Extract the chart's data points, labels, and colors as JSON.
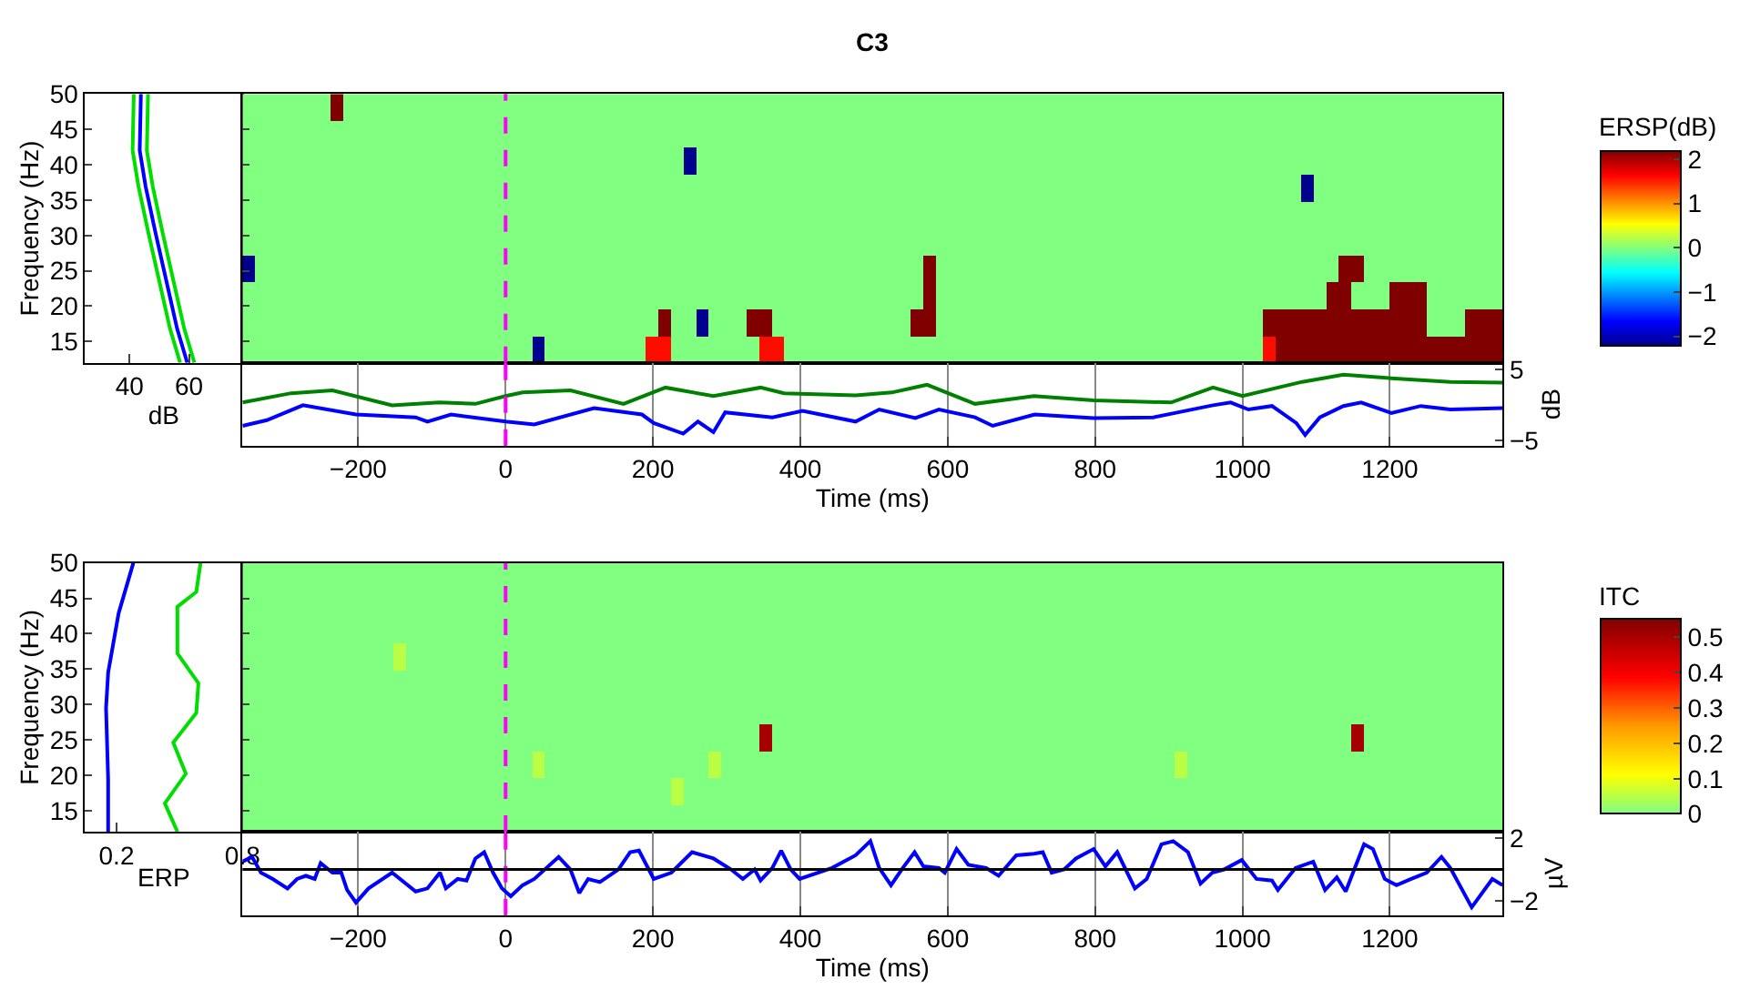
{
  "chart_data": [
    {
      "type": "line",
      "orientation": "horizontal",
      "ylabel": "Frequency (Hz)",
      "xlabel": "dB",
      "xlim": [
        25,
        78
      ],
      "xticks": [
        40,
        60
      ],
      "ylim": [
        12,
        50
      ],
      "yticks": [
        15,
        20,
        25,
        30,
        35,
        40,
        45,
        50
      ],
      "series": [
        {
          "color": "#00dd00",
          "x": [
            50,
            42,
            36.9,
            30.2,
            23.5,
            16.8,
            12
          ],
          "values": [
            41.4,
            41,
            43,
            46.4,
            50,
            53.6,
            57
          ]
        },
        {
          "color": "#00dd00",
          "x": [
            50,
            42,
            36.9,
            30.2,
            23.5,
            16.8,
            12
          ],
          "values": [
            46.2,
            45.8,
            47.8,
            51.2,
            54.8,
            58.4,
            61.8
          ]
        },
        {
          "color": "#0000ff",
          "x": [
            50,
            42,
            36.9,
            30.2,
            23.5,
            16.8,
            12
          ],
          "values": [
            43.8,
            43.4,
            45.4,
            48.8,
            52.4,
            56,
            59.4
          ]
        }
      ]
    },
    {
      "type": "heatmap",
      "title": "C3",
      "clabel": "ERSP(dB)",
      "clim": [
        -2.2,
        2.2
      ],
      "cticks": [
        -2,
        -1,
        0,
        1,
        2
      ],
      "xlim": [
        -357,
        1353
      ],
      "ylim": [
        12,
        50
      ],
      "yticks": [
        15,
        20,
        25,
        30,
        35,
        40,
        45,
        50
      ],
      "tick_labels": false,
      "ref_lines": [
        {
          "axis": "x",
          "value": 0,
          "color": "#ff00ff",
          "line_style": "dashed"
        }
      ],
      "cells": [
        [
          0,
          0,
          0,
          0,
          0,
          0,
          0,
          2.2,
          0,
          0,
          0,
          0,
          0,
          0,
          0,
          0,
          0,
          0,
          0,
          0,
          0,
          0,
          0,
          0,
          0,
          0,
          0,
          0,
          0,
          0,
          0,
          0,
          0,
          0,
          0,
          0,
          0,
          0,
          0,
          0,
          0,
          0,
          0,
          0,
          0,
          0,
          0,
          0,
          0,
          0,
          0,
          0,
          0,
          0,
          0,
          0,
          0,
          0,
          0,
          0,
          0,
          0,
          0,
          0,
          0,
          0,
          0,
          0,
          0,
          0,
          0,
          0,
          0,
          0,
          0,
          0,
          0,
          0,
          0,
          0,
          0,
          0,
          0,
          0,
          0,
          0,
          0,
          0,
          0,
          0,
          0,
          0,
          0,
          0,
          0,
          0,
          0,
          0,
          0,
          0
        ],
        [
          0,
          0,
          0,
          0,
          0,
          0,
          0,
          0,
          0,
          0,
          0,
          0,
          0,
          0,
          0,
          0,
          0,
          0,
          0,
          0,
          0,
          0,
          0,
          0,
          0,
          0,
          0,
          0,
          0,
          0,
          0,
          0,
          0,
          0,
          0,
          0,
          0,
          0,
          0,
          0,
          0,
          0,
          0,
          0,
          0,
          0,
          0,
          0,
          0,
          0,
          0,
          0,
          0,
          0,
          0,
          0,
          0,
          0,
          0,
          0,
          0,
          0,
          0,
          0,
          0,
          0,
          0,
          0,
          0,
          0,
          0,
          0,
          0,
          0,
          0,
          0,
          0,
          0,
          0,
          0,
          0,
          0,
          0,
          0,
          0,
          0,
          0,
          0,
          0,
          0,
          0,
          0,
          0,
          0,
          0,
          0,
          0,
          0,
          0,
          0
        ],
        [
          0,
          0,
          0,
          0,
          0,
          0,
          0,
          0,
          0,
          0,
          0,
          0,
          0,
          0,
          0,
          0,
          0,
          0,
          0,
          0,
          0,
          0,
          0,
          0,
          0,
          0,
          0,
          0,
          0,
          0,
          0,
          0,
          0,
          0,
          0,
          -2.2,
          0,
          0,
          0,
          0,
          0,
          0,
          0,
          0,
          0,
          0,
          0,
          0,
          0,
          0,
          0,
          0,
          0,
          0,
          0,
          0,
          0,
          0,
          0,
          0,
          0,
          0,
          0,
          0,
          0,
          0,
          0,
          0,
          0,
          0,
          0,
          0,
          0,
          0,
          0,
          0,
          0,
          0,
          0,
          0,
          0,
          0,
          0,
          0,
          0,
          0,
          0,
          0,
          0,
          0,
          0,
          0,
          0,
          0,
          0,
          0,
          0,
          0,
          0,
          0
        ],
        [
          0,
          0,
          0,
          0,
          0,
          0,
          0,
          0,
          0,
          0,
          0,
          0,
          0,
          0,
          0,
          0,
          0,
          0,
          0,
          0,
          0,
          0,
          0,
          0,
          0,
          0,
          0,
          0,
          0,
          0,
          0,
          0,
          0,
          0,
          0,
          0,
          0,
          0,
          0,
          0,
          0,
          0,
          0,
          0,
          0,
          0,
          0,
          0,
          0,
          0,
          0,
          0,
          0,
          0,
          0,
          0,
          0,
          0,
          0,
          0,
          0,
          0,
          0,
          0,
          0,
          0,
          0,
          0,
          0,
          0,
          0,
          0,
          0,
          0,
          0,
          0,
          0,
          0,
          0,
          0,
          0,
          0,
          0,
          0,
          -2.2,
          0,
          0,
          0,
          0,
          0,
          0,
          0,
          0,
          0,
          0,
          0,
          0,
          0,
          0,
          0
        ],
        [
          0,
          0,
          0,
          0,
          0,
          0,
          0,
          0,
          0,
          0,
          0,
          0,
          0,
          0,
          0,
          0,
          0,
          0,
          0,
          0,
          0,
          0,
          0,
          0,
          0,
          0,
          0,
          0,
          0,
          0,
          0,
          0,
          0,
          0,
          0,
          0,
          0,
          0,
          0,
          0,
          0,
          0,
          0,
          0,
          0,
          0,
          0,
          0,
          0,
          0,
          0,
          0,
          0,
          0,
          0,
          0,
          0,
          0,
          0,
          0,
          0,
          0,
          0,
          0,
          0,
          0,
          0,
          0,
          0,
          0,
          0,
          0,
          0,
          0,
          0,
          0,
          0,
          0,
          0,
          0,
          0,
          0,
          0,
          0,
          0,
          0,
          0,
          0,
          0,
          0,
          0,
          0,
          0,
          0,
          0,
          0,
          0,
          0,
          0,
          0
        ],
        [
          0,
          0,
          0,
          0,
          0,
          0,
          0,
          0,
          0,
          0,
          0,
          0,
          0,
          0,
          0,
          0,
          0,
          0,
          0,
          0,
          0,
          0,
          0,
          0,
          0,
          0,
          0,
          0,
          0,
          0,
          0,
          0,
          0,
          0,
          0,
          0,
          0,
          0,
          0,
          0,
          0,
          0,
          0,
          0,
          0,
          0,
          0,
          0,
          0,
          0,
          0,
          0,
          0,
          0,
          0,
          0,
          0,
          0,
          0,
          0,
          0,
          0,
          0,
          0,
          0,
          0,
          0,
          0,
          0,
          0,
          0,
          0,
          0,
          0,
          0,
          0,
          0,
          0,
          0,
          0,
          0,
          0,
          0,
          0,
          0,
          0,
          0,
          0,
          0,
          0,
          0,
          0,
          0,
          0,
          0,
          0,
          0,
          0,
          0,
          0
        ],
        [
          -2.2,
          0,
          0,
          0,
          0,
          0,
          0,
          0,
          0,
          0,
          0,
          0,
          0,
          0,
          0,
          0,
          0,
          0,
          0,
          0,
          0,
          0,
          0,
          0,
          0,
          0,
          0,
          0,
          0,
          0,
          0,
          0,
          0,
          0,
          0,
          0,
          0,
          0,
          0,
          0,
          0,
          0,
          0,
          0,
          0,
          0,
          0,
          0,
          0,
          0,
          0,
          0,
          0,
          0,
          2.2,
          0,
          0,
          0,
          0,
          0,
          0,
          0,
          0,
          0,
          0,
          0,
          0,
          0,
          0,
          0,
          0,
          0,
          0,
          0,
          0,
          0,
          0,
          0,
          0,
          0,
          0,
          0,
          0,
          0,
          0,
          0,
          0,
          2.2,
          2.2,
          0,
          0,
          0,
          0,
          0,
          0,
          0,
          0,
          0,
          0,
          0
        ],
        [
          0,
          0,
          0,
          0,
          0,
          0,
          0,
          0,
          0,
          0,
          0,
          0,
          0,
          0,
          0,
          0,
          0,
          0,
          0,
          0,
          0,
          0,
          0,
          0,
          0,
          0,
          0,
          0,
          0,
          0,
          0,
          0,
          0,
          0,
          0,
          0,
          0,
          0,
          0,
          0,
          0,
          0,
          0,
          0,
          0,
          0,
          0,
          0,
          0,
          0,
          0,
          0,
          0,
          0,
          2.2,
          0,
          0,
          0,
          0,
          0,
          0,
          0,
          0,
          0,
          0,
          0,
          0,
          0,
          0,
          0,
          0,
          0,
          0,
          0,
          0,
          0,
          0,
          0,
          0,
          0,
          0,
          0,
          0,
          0,
          0,
          0,
          2.2,
          2.2,
          0,
          0,
          0,
          2.2,
          2.2,
          2.2,
          0,
          0,
          0,
          0,
          0,
          0
        ],
        [
          0,
          0,
          0,
          0,
          0,
          0,
          0,
          0,
          0,
          0,
          0,
          0,
          0,
          0,
          0,
          0,
          0,
          0,
          0,
          0,
          0,
          0,
          0,
          0,
          0,
          0,
          0,
          0,
          0,
          0,
          0,
          0,
          0,
          2.2,
          0,
          0,
          -2.2,
          0,
          0,
          0,
          2.2,
          2.2,
          0,
          0,
          0,
          0,
          0,
          0,
          0,
          0,
          0,
          0,
          0,
          2.2,
          2.2,
          0,
          0,
          0,
          0,
          0,
          0,
          0,
          0,
          0,
          0,
          0,
          0,
          0,
          0,
          0,
          0,
          0,
          0,
          0,
          0,
          0,
          0,
          0,
          0,
          0,
          0,
          2.2,
          2.2,
          2.2,
          2.2,
          2.2,
          2.2,
          2.2,
          2.2,
          2.2,
          2.2,
          2.2,
          2.2,
          2.2,
          0,
          0,
          0,
          2.2,
          2.2,
          2.2
        ],
        [
          0,
          0,
          0,
          0,
          0,
          0,
          0,
          0,
          0,
          0,
          0,
          0,
          0,
          0,
          0,
          0,
          0,
          0,
          0,
          0,
          0,
          0,
          0,
          -2.2,
          0,
          0,
          0,
          0,
          0,
          0,
          0,
          0,
          1.6,
          1.6,
          0,
          0,
          0,
          0,
          0,
          0,
          0,
          1.6,
          1.6,
          0,
          0,
          0,
          0,
          0,
          0,
          0,
          0,
          0,
          0,
          0,
          0,
          0,
          0,
          0,
          0,
          0,
          0,
          0,
          0,
          0,
          0,
          0,
          0,
          0,
          0,
          0,
          0,
          0,
          0,
          0,
          0,
          0,
          0,
          0,
          0,
          0,
          0,
          1.6,
          2.2,
          2.2,
          2.2,
          2.2,
          2.2,
          2.2,
          2.2,
          2.2,
          2.2,
          2.2,
          2.2,
          2.2,
          2.2,
          2.2,
          2.2,
          2.2,
          2.2,
          2.2
        ]
      ]
    },
    {
      "type": "line",
      "xlabel": "Time (ms)",
      "ylabel": "dB",
      "xlim": [
        -357,
        1353
      ],
      "xticks": [
        -200,
        0,
        200,
        400,
        600,
        800,
        1000,
        1200
      ],
      "ylim": [
        -5.7,
        6
      ],
      "yticks": [
        -5,
        5
      ],
      "grid": "x",
      "ref_lines": [
        {
          "axis": "x",
          "value": 0,
          "color": "#ff00ff",
          "line_style": "dashed"
        }
      ],
      "series": [
        {
          "color": "#008000",
          "x": [
            -357,
            -291,
            -235,
            -154,
            -90,
            -41,
            0,
            23,
            88,
            160,
            217,
            282,
            346,
            378,
            475,
            524,
            572,
            637,
            717,
            798,
            903,
            960,
            1000,
            1081,
            1137,
            1202,
            1282,
            1353
          ],
          "values": [
            0.4,
            1.7,
            2.1,
            0,
            0.4,
            0.2,
            1.3,
            1.8,
            2.1,
            0.2,
            2.5,
            1.3,
            2.5,
            1.7,
            1.4,
            1.8,
            2.9,
            0.2,
            1.3,
            0.7,
            0.4,
            2.5,
            1.3,
            3.3,
            4.3,
            3.8,
            3.3,
            3.2
          ]
        },
        {
          "color": "#0000ff",
          "x": [
            -357,
            -324,
            -275,
            -203,
            -122,
            -106,
            -74,
            0,
            39,
            120,
            185,
            201,
            241,
            261,
            282,
            298,
            362,
            403,
            475,
            507,
            556,
            588,
            637,
            661,
            718,
            798,
            879,
            960,
            984,
            1008,
            1040,
            1073,
            1085,
            1105,
            1137,
            1161,
            1202,
            1242,
            1282,
            1353
          ],
          "values": [
            -2.9,
            -2.1,
            0,
            -1.3,
            -1.7,
            -2.3,
            -1.3,
            -2.3,
            -2.7,
            -0.4,
            -1.3,
            -2.5,
            -4,
            -2.3,
            -3.8,
            -1,
            -1.7,
            -0.8,
            -2.3,
            -0.6,
            -1.8,
            -0.6,
            -1.7,
            -2.9,
            -1.3,
            -1.8,
            -1.7,
            0,
            0.4,
            -0.6,
            -0.1,
            -2.5,
            -4.2,
            -1.7,
            -0.1,
            0.4,
            -1.1,
            -0.1,
            -0.6,
            -0.4
          ]
        }
      ]
    },
    {
      "type": "line",
      "orientation": "horizontal",
      "ylabel": "Frequency (Hz)",
      "xlabel": "ERP",
      "xlim": [
        0.05,
        0.8
      ],
      "xticks": [
        0.2,
        0.8
      ],
      "ylim": [
        12,
        50
      ],
      "yticks": [
        15,
        20,
        25,
        30,
        35,
        40,
        45,
        50
      ],
      "series": [
        {
          "color": "#0000ff",
          "x": [
            50,
            42.9,
            34.5,
            29.5,
            19.4,
            12
          ],
          "values": [
            0.28,
            0.21,
            0.16,
            0.15,
            0.16,
            0.16
          ]
        },
        {
          "color": "#00dd00",
          "x": [
            50,
            45.9,
            43.8,
            37.2,
            33,
            28.8,
            24.6,
            20.2,
            16,
            12
          ],
          "values": [
            0.6,
            0.58,
            0.49,
            0.49,
            0.59,
            0.58,
            0.47,
            0.53,
            0.43,
            0.49
          ]
        }
      ]
    },
    {
      "type": "heatmap",
      "clabel": "ITC",
      "clim": [
        0,
        0.55
      ],
      "cticks": [
        0,
        0.1,
        0.2,
        0.3,
        0.4,
        0.5
      ],
      "xlim": [
        -357,
        1353
      ],
      "ylim": [
        12,
        50
      ],
      "yticks": [
        15,
        20,
        25,
        30,
        35,
        40,
        45,
        50
      ],
      "tick_labels": false,
      "ref_lines": [
        {
          "axis": "x",
          "value": 0,
          "color": "#ff00ff",
          "line_style": "dashed"
        }
      ],
      "cells": [
        [
          0,
          0,
          0,
          0,
          0,
          0,
          0,
          0,
          0,
          0,
          0,
          0,
          0,
          0,
          0,
          0,
          0,
          0,
          0,
          0,
          0,
          0,
          0,
          0,
          0,
          0,
          0,
          0,
          0,
          0,
          0,
          0,
          0,
          0,
          0,
          0,
          0,
          0,
          0,
          0,
          0,
          0,
          0,
          0,
          0,
          0,
          0,
          0,
          0,
          0,
          0,
          0,
          0,
          0,
          0,
          0,
          0,
          0,
          0,
          0,
          0,
          0,
          0,
          0,
          0,
          0,
          0,
          0,
          0,
          0,
          0,
          0,
          0,
          0,
          0,
          0,
          0,
          0,
          0,
          0,
          0,
          0,
          0,
          0,
          0,
          0,
          0,
          0,
          0,
          0,
          0,
          0,
          0,
          0,
          0,
          0,
          0,
          0,
          0,
          0
        ],
        [
          0,
          0,
          0,
          0,
          0,
          0,
          0,
          0,
          0,
          0,
          0,
          0,
          0,
          0,
          0,
          0,
          0,
          0,
          0,
          0,
          0,
          0,
          0,
          0,
          0,
          0,
          0,
          0,
          0,
          0,
          0,
          0,
          0,
          0,
          0,
          0,
          0,
          0,
          0,
          0,
          0,
          0,
          0,
          0,
          0,
          0,
          0,
          0,
          0,
          0,
          0,
          0,
          0,
          0,
          0,
          0,
          0,
          0,
          0,
          0,
          0,
          0,
          0,
          0,
          0,
          0,
          0,
          0,
          0,
          0,
          0,
          0,
          0,
          0,
          0,
          0,
          0,
          0,
          0,
          0,
          0,
          0,
          0,
          0,
          0,
          0,
          0,
          0,
          0,
          0,
          0,
          0,
          0,
          0,
          0,
          0,
          0,
          0,
          0,
          0
        ],
        [
          0,
          0,
          0,
          0,
          0,
          0,
          0,
          0,
          0,
          0,
          0,
          0,
          0,
          0,
          0,
          0,
          0,
          0,
          0,
          0,
          0,
          0,
          0,
          0,
          0,
          0,
          0,
          0,
          0,
          0,
          0,
          0,
          0,
          0,
          0,
          0,
          0,
          0,
          0,
          0,
          0,
          0,
          0,
          0,
          0,
          0,
          0,
          0,
          0,
          0,
          0,
          0,
          0,
          0,
          0,
          0,
          0,
          0,
          0,
          0,
          0,
          0,
          0,
          0,
          0,
          0,
          0,
          0,
          0,
          0,
          0,
          0,
          0,
          0,
          0,
          0,
          0,
          0,
          0,
          0,
          0,
          0,
          0,
          0,
          0,
          0,
          0,
          0,
          0,
          0,
          0,
          0,
          0,
          0,
          0,
          0,
          0,
          0,
          0,
          0
        ],
        [
          0,
          0,
          0,
          0,
          0,
          0,
          0,
          0,
          0,
          0,
          0,
          0,
          0.05,
          0,
          0,
          0,
          0,
          0,
          0,
          0,
          0,
          0,
          0,
          0,
          0,
          0,
          0,
          0,
          0,
          0,
          0,
          0,
          0,
          0,
          0,
          0,
          0,
          0,
          0,
          0,
          0,
          0,
          0,
          0,
          0,
          0,
          0,
          0,
          0,
          0,
          0,
          0,
          0,
          0,
          0,
          0,
          0,
          0,
          0,
          0,
          0,
          0,
          0,
          0,
          0,
          0,
          0,
          0,
          0,
          0,
          0,
          0,
          0,
          0,
          0,
          0,
          0,
          0,
          0,
          0,
          0,
          0,
          0,
          0,
          0,
          0,
          0,
          0,
          0,
          0,
          0,
          0,
          0,
          0,
          0,
          0,
          0,
          0,
          0,
          0
        ],
        [
          0,
          0,
          0,
          0,
          0,
          0,
          0,
          0,
          0,
          0,
          0,
          0,
          0,
          0,
          0,
          0,
          0,
          0,
          0,
          0,
          0,
          0,
          0,
          0,
          0,
          0,
          0,
          0,
          0,
          0,
          0,
          0,
          0,
          0,
          0,
          0,
          0,
          0,
          0,
          0,
          0,
          0,
          0,
          0,
          0,
          0,
          0,
          0,
          0,
          0,
          0,
          0,
          0,
          0,
          0,
          0,
          0,
          0,
          0,
          0,
          0,
          0,
          0,
          0,
          0,
          0,
          0,
          0,
          0,
          0,
          0,
          0,
          0,
          0,
          0,
          0,
          0,
          0,
          0,
          0,
          0,
          0,
          0,
          0,
          0,
          0,
          0,
          0,
          0,
          0,
          0,
          0,
          0,
          0,
          0,
          0,
          0,
          0,
          0,
          0
        ],
        [
          0,
          0,
          0,
          0,
          0,
          0,
          0,
          0,
          0,
          0,
          0,
          0,
          0,
          0,
          0,
          0,
          0,
          0,
          0,
          0,
          0,
          0,
          0,
          0,
          0,
          0,
          0,
          0,
          0,
          0,
          0,
          0,
          0,
          0,
          0,
          0,
          0,
          0,
          0,
          0,
          0,
          0,
          0,
          0,
          0,
          0,
          0,
          0,
          0,
          0,
          0,
          0,
          0,
          0,
          0,
          0,
          0,
          0,
          0,
          0,
          0,
          0,
          0,
          0,
          0,
          0,
          0,
          0,
          0,
          0,
          0,
          0,
          0,
          0,
          0,
          0,
          0,
          0,
          0,
          0,
          0,
          0,
          0,
          0,
          0,
          0,
          0,
          0,
          0,
          0,
          0,
          0,
          0,
          0,
          0,
          0,
          0,
          0,
          0,
          0
        ],
        [
          0,
          0,
          0,
          0,
          0,
          0,
          0,
          0,
          0,
          0,
          0,
          0,
          0,
          0,
          0,
          0,
          0,
          0,
          0,
          0,
          0,
          0,
          0,
          0,
          0,
          0,
          0,
          0,
          0,
          0,
          0,
          0,
          0,
          0,
          0,
          0,
          0,
          0,
          0,
          0,
          0,
          0.5,
          0,
          0,
          0,
          0,
          0,
          0,
          0,
          0,
          0,
          0,
          0,
          0,
          0,
          0,
          0,
          0,
          0,
          0,
          0,
          0,
          0,
          0,
          0,
          0,
          0,
          0,
          0,
          0,
          0,
          0,
          0,
          0,
          0,
          0,
          0,
          0,
          0,
          0,
          0,
          0,
          0,
          0,
          0,
          0,
          0,
          0,
          0.5,
          0,
          0,
          0,
          0,
          0,
          0,
          0,
          0,
          0,
          0,
          0
        ],
        [
          0,
          0,
          0,
          0,
          0,
          0,
          0,
          0,
          0,
          0,
          0,
          0,
          0,
          0,
          0,
          0,
          0,
          0,
          0,
          0,
          0,
          0,
          0,
          0.05,
          0,
          0,
          0,
          0,
          0,
          0,
          0,
          0,
          0,
          0,
          0,
          0,
          0,
          0.05,
          0,
          0,
          0,
          0,
          0,
          0,
          0,
          0,
          0,
          0,
          0,
          0,
          0,
          0,
          0,
          0,
          0,
          0,
          0,
          0,
          0,
          0,
          0,
          0,
          0,
          0,
          0,
          0,
          0,
          0,
          0,
          0,
          0,
          0,
          0,
          0,
          0.05,
          0,
          0,
          0,
          0,
          0,
          0,
          0,
          0,
          0,
          0,
          0,
          0,
          0,
          0,
          0,
          0,
          0,
          0,
          0,
          0,
          0,
          0,
          0,
          0,
          0
        ],
        [
          0,
          0,
          0,
          0,
          0,
          0,
          0,
          0,
          0,
          0,
          0,
          0,
          0,
          0,
          0,
          0,
          0,
          0,
          0,
          0,
          0,
          0,
          0,
          0,
          0,
          0,
          0,
          0,
          0,
          0,
          0,
          0,
          0,
          0,
          0.05,
          0,
          0,
          0,
          0,
          0,
          0,
          0,
          0,
          0,
          0,
          0,
          0,
          0,
          0,
          0,
          0,
          0,
          0,
          0,
          0,
          0,
          0,
          0,
          0,
          0,
          0,
          0,
          0,
          0,
          0,
          0,
          0,
          0,
          0,
          0,
          0,
          0,
          0,
          0,
          0,
          0,
          0,
          0,
          0,
          0,
          0,
          0,
          0,
          0,
          0,
          0,
          0,
          0,
          0,
          0,
          0,
          0,
          0,
          0,
          0,
          0,
          0,
          0,
          0,
          0
        ],
        [
          0,
          0,
          0,
          0,
          0,
          0,
          0,
          0,
          0,
          0,
          0,
          0,
          0,
          0,
          0,
          0,
          0,
          0,
          0,
          0,
          0,
          0,
          0,
          0,
          0,
          0,
          0,
          0,
          0,
          0,
          0,
          0,
          0,
          0,
          0,
          0,
          0,
          0,
          0,
          0,
          0,
          0,
          0,
          0,
          0,
          0,
          0,
          0,
          0,
          0,
          0,
          0,
          0,
          0,
          0,
          0,
          0,
          0,
          0,
          0,
          0,
          0,
          0,
          0,
          0,
          0,
          0,
          0,
          0,
          0,
          0,
          0,
          0,
          0,
          0,
          0,
          0,
          0,
          0,
          0,
          0,
          0,
          0,
          0,
          0,
          0,
          0,
          0,
          0,
          0,
          0,
          0,
          0,
          0,
          0,
          0,
          0,
          0,
          0,
          0
        ]
      ]
    },
    {
      "type": "line",
      "xlabel": "Time (ms)",
      "ylabel": "µV",
      "xlim": [
        -357,
        1353
      ],
      "xticks": [
        -200,
        0,
        200,
        400,
        600,
        800,
        1000,
        1200
      ],
      "ylim": [
        -2.9,
        2.4
      ],
      "yticks": [
        -2,
        2
      ],
      "grid": "x",
      "ref_lines": [
        {
          "axis": "x",
          "value": 0,
          "color": "#ff00ff",
          "line_style": "dashed"
        },
        {
          "axis": "y",
          "value": 0,
          "color": "#000000",
          "line_style": "solid"
        }
      ],
      "series": [
        {
          "color": "#0000ff",
          "x": [
            -357,
            -344,
            -332,
            -316,
            -296,
            -283,
            -271,
            -259,
            -251,
            -235,
            -223,
            -215,
            -203,
            -186,
            -154,
            -122,
            -106,
            -89,
            -81,
            -65,
            -53,
            -41,
            -29,
            -17,
            -5,
            7,
            23,
            39,
            72,
            88,
            100,
            112,
            128,
            153,
            169,
            181,
            201,
            225,
            253,
            282,
            306,
            322,
            338,
            346,
            362,
            374,
            387,
            399,
            443,
            475,
            495,
            507,
            523,
            539,
            555,
            567,
            588,
            596,
            612,
            628,
            652,
            669,
            693,
            717,
            729,
            741,
            758,
            774,
            798,
            814,
            830,
            854,
            870,
            890,
            906,
            926,
            943,
            959,
            975,
            999,
            1019,
            1040,
            1048,
            1072,
            1096,
            1112,
            1128,
            1140,
            1165,
            1177,
            1193,
            1209,
            1229,
            1250,
            1270,
            1282,
            1311,
            1339,
            1353
          ],
          "values": [
            0.5,
            0.8,
            -0.2,
            -0.6,
            -1.2,
            -0.6,
            -0.4,
            -0.6,
            0.4,
            -0.2,
            -0.2,
            -1.3,
            -2.1,
            -1.2,
            -0.2,
            -1.4,
            -1.2,
            -0.2,
            -1.2,
            -0.6,
            -0.7,
            0.7,
            1.1,
            -0.2,
            -1.2,
            -1.7,
            -1,
            -0.6,
            0.8,
            0,
            -1.5,
            -0.6,
            -0.8,
            0,
            1.1,
            1.2,
            -0.6,
            -0.2,
            1.1,
            0.7,
            0,
            -0.6,
            0,
            -0.7,
            0.1,
            1.2,
            0,
            -0.6,
            0.1,
            0.9,
            1.8,
            0.1,
            -1,
            0.1,
            1.1,
            0.2,
            0.1,
            -0.2,
            1.3,
            0.3,
            0.1,
            -0.4,
            0.9,
            1,
            1.1,
            -0.2,
            0,
            0.7,
            1.3,
            0.2,
            1.1,
            -1.2,
            -0.6,
            1.6,
            1.8,
            1.1,
            -0.9,
            -0.2,
            0,
            0.6,
            -0.6,
            -0.7,
            -1.3,
            0.1,
            0.5,
            -1.3,
            -0.5,
            -1.4,
            1.6,
            1.3,
            -0.6,
            -1,
            -0.6,
            -0.2,
            0.8,
            0.1,
            -2.4,
            -0.6,
            -1
          ]
        }
      ]
    }
  ]
}
